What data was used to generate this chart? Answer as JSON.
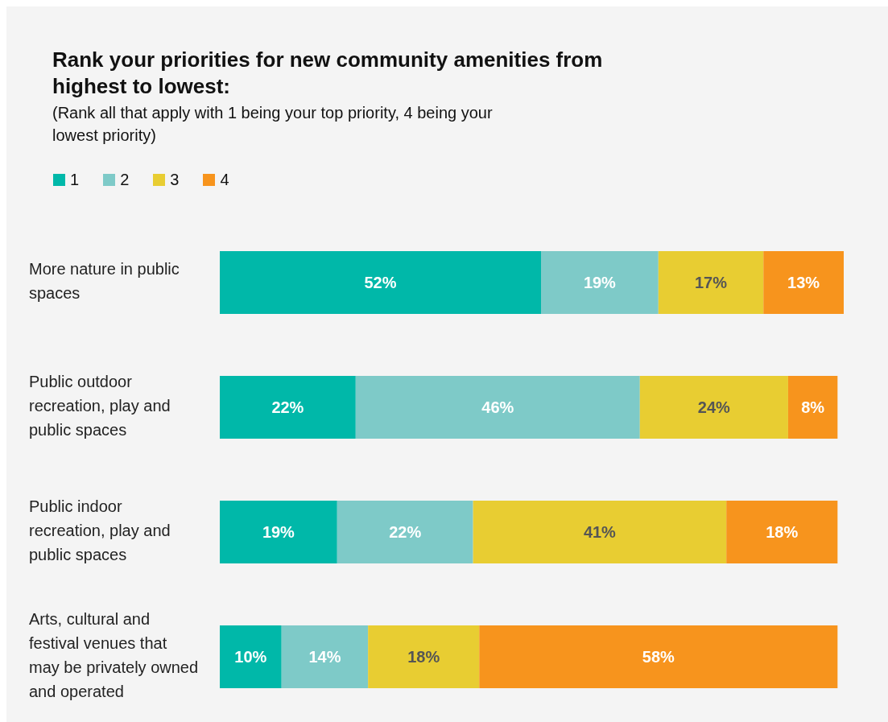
{
  "chart_data": {
    "type": "bar",
    "orientation": "horizontal",
    "stacked": true,
    "title": "Rank your priorities for new community amenities from highest to lowest:",
    "subtitle": "(Rank all that apply with 1 being your top priority, 4 being your lowest priority)",
    "categories": [
      "More nature in public spaces",
      "Public outdoor recreation, play and public spaces",
      "Public indoor recreation, play and public spaces",
      "Arts, cultural and festival venues that may be privately owned and operated"
    ],
    "series": [
      {
        "name": "1",
        "color": "#00b8a9",
        "values": [
          52,
          22,
          19,
          10
        ],
        "value_labels": [
          "52%",
          "22%",
          "19%",
          "10%"
        ]
      },
      {
        "name": "2",
        "color": "#7ecac8",
        "values": [
          19,
          46,
          22,
          14
        ],
        "value_labels": [
          "19%",
          "46%",
          "22%",
          "14%"
        ]
      },
      {
        "name": "3",
        "color": "#e8cd32",
        "values": [
          17,
          24,
          41,
          18
        ],
        "value_labels": [
          "17%",
          "24%",
          "41%",
          "18%"
        ]
      },
      {
        "name": "4",
        "color": "#f7941d",
        "values": [
          13,
          8,
          18,
          58
        ],
        "value_labels": [
          "13%",
          "8%",
          "18%",
          "58%"
        ]
      }
    ],
    "legend": "top left",
    "grid": false
  }
}
